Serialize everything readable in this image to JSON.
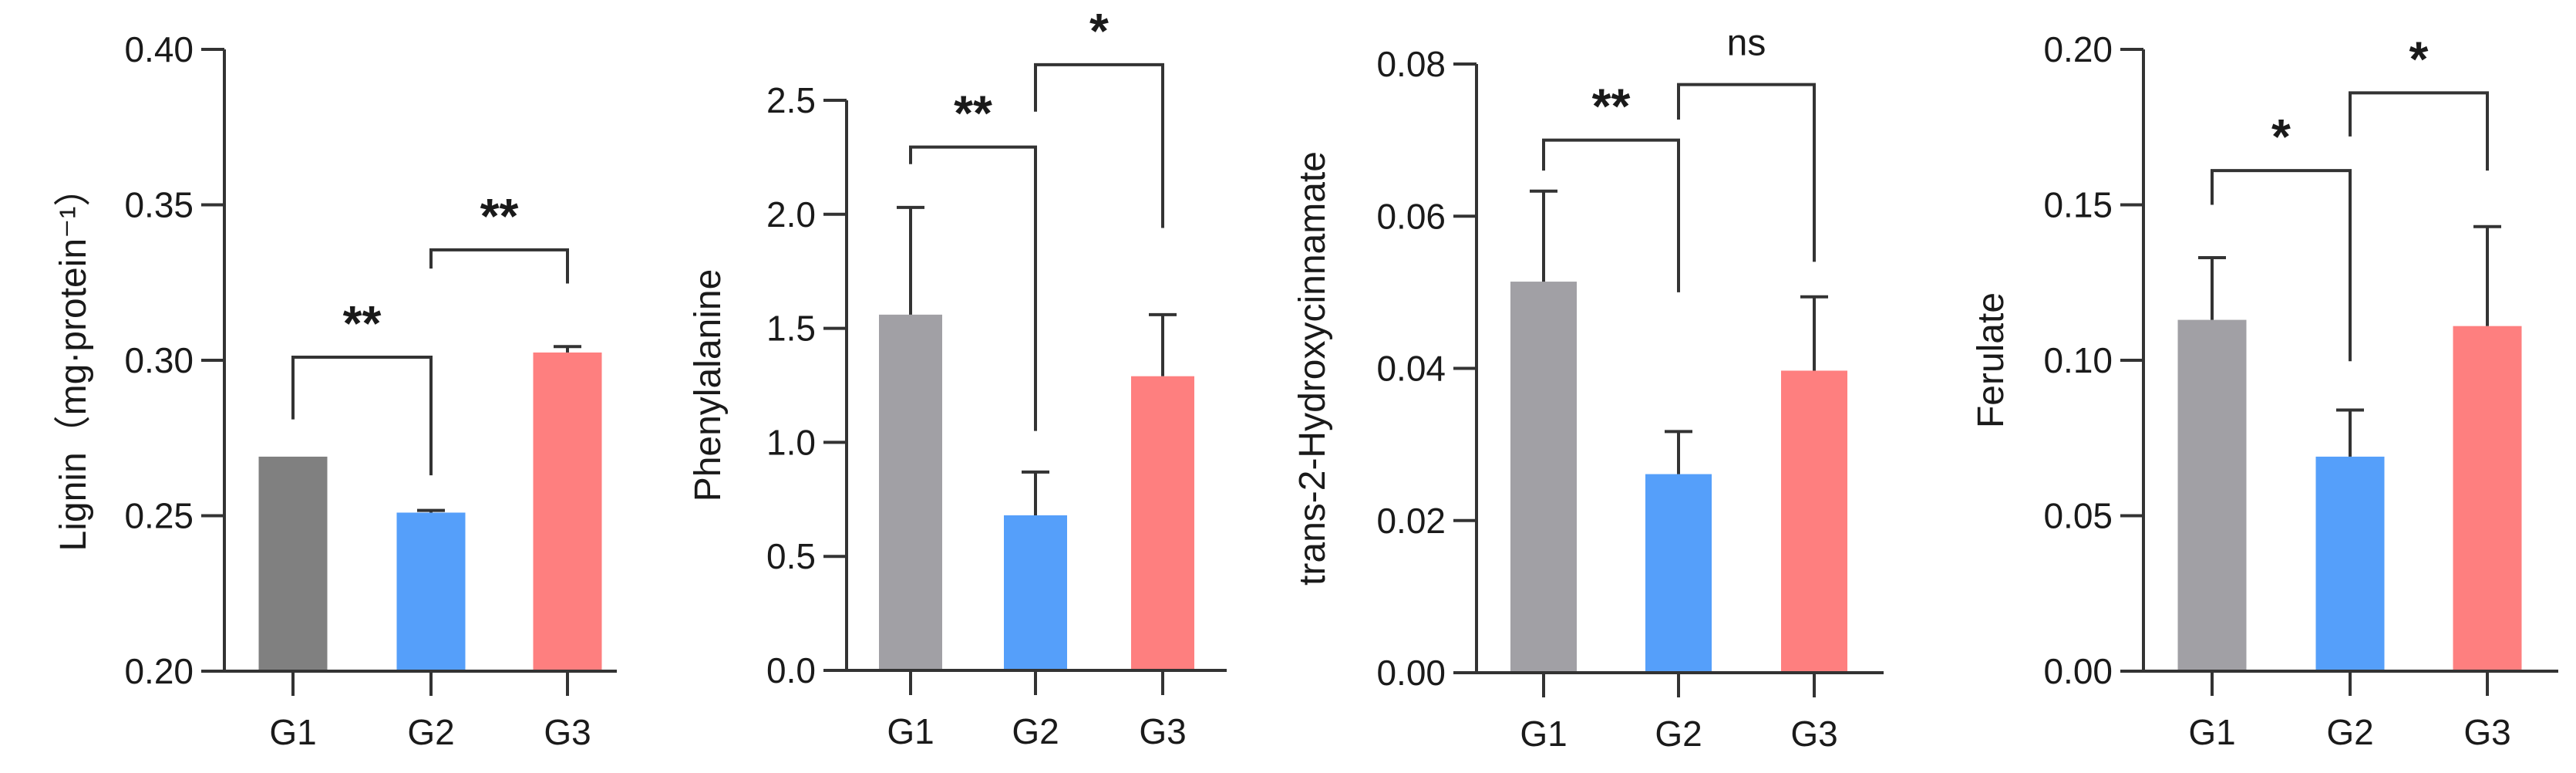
{
  "chart_data": [
    {
      "type": "bar",
      "ylabel": "Lignin（mg·protein⁻¹）",
      "categories": [
        "G1",
        "G2",
        "G3"
      ],
      "values": [
        0.269,
        0.251,
        0.3025
      ],
      "error_upper": [
        0.269,
        0.2517,
        0.3044
      ],
      "ylim": [
        0.2,
        0.4
      ],
      "yticks": [
        0.2,
        0.25,
        0.3,
        0.35,
        0.4
      ],
      "ytick_labels": [
        "0.20",
        "0.25",
        "0.30",
        "0.35",
        "0.40"
      ],
      "colors": [
        "#808080",
        "#559ffa",
        "#fe7f7f"
      ],
      "brackets": [
        {
          "from": 0,
          "to": 1,
          "y": 0.301,
          "left_end": 0.281,
          "right_end": 0.263,
          "label": "**"
        },
        {
          "from": 1,
          "to": 2,
          "y": 0.3355,
          "left_end": 0.3295,
          "right_end": 0.3247,
          "label": "**"
        }
      ]
    },
    {
      "type": "bar",
      "ylabel": "Phenylalanine",
      "categories": [
        "G1",
        "G2",
        "G3"
      ],
      "values": [
        1.56,
        0.68,
        1.29
      ],
      "error_upper": [
        2.03,
        0.87,
        1.56
      ],
      "ylim": [
        0,
        2.5
      ],
      "yticks": [
        0,
        0.5,
        1.0,
        1.5,
        2.0,
        2.5
      ],
      "ytick_labels": [
        "0.0",
        "0.5",
        "1.0",
        "1.5",
        "2.0",
        "2.5"
      ],
      "colors": [
        "#a1a0a5",
        "#559ffa",
        "#fe7f7f"
      ],
      "brackets": [
        {
          "from": 0,
          "to": 1,
          "y": 2.295,
          "left_end": 2.22,
          "right_end": 1.05,
          "label": "**"
        },
        {
          "from": 1,
          "to": 2,
          "y": 2.656,
          "left_end": 2.45,
          "right_end": 1.94,
          "label": "*"
        }
      ]
    },
    {
      "type": "bar",
      "ylabel": "trans-2-Hydroxycinnamate",
      "categories": [
        "G1",
        "G2",
        "G3"
      ],
      "values": [
        0.0514,
        0.0261,
        0.0397
      ],
      "error_upper": [
        0.0633,
        0.0317,
        0.0494
      ],
      "ylim": [
        0,
        0.08
      ],
      "yticks": [
        0,
        0.02,
        0.04,
        0.06,
        0.08
      ],
      "ytick_labels": [
        "0.00",
        "0.02",
        "0.04",
        "0.06",
        "0.08"
      ],
      "colors": [
        "#a1a0a5",
        "#559ffa",
        "#fe7f7f"
      ],
      "brackets": [
        {
          "from": 0,
          "to": 1,
          "y": 0.07,
          "left_end": 0.066,
          "right_end": 0.05,
          "label": "**"
        },
        {
          "from": 1,
          "to": 2,
          "y": 0.0773,
          "left_end": 0.0727,
          "right_end": 0.054,
          "label": "ns"
        }
      ]
    },
    {
      "type": "bar",
      "ylabel": "Ferulate",
      "categories": [
        "G1",
        "G2",
        "G3"
      ],
      "values": [
        0.113,
        0.069,
        0.111
      ],
      "error_upper": [
        0.133,
        0.084,
        0.143
      ],
      "ylim": [
        0,
        0.2
      ],
      "yticks": [
        0,
        0.05,
        0.1,
        0.15,
        0.2
      ],
      "ytick_labels": [
        "0.00",
        "0.05",
        "0.10",
        "0.15",
        "0.20"
      ],
      "colors": [
        "#a1a0a5",
        "#559ffa",
        "#fe7f7f"
      ],
      "brackets": [
        {
          "from": 0,
          "to": 1,
          "y": 0.161,
          "left_end": 0.15,
          "right_end": 0.0997,
          "label": "*"
        },
        {
          "from": 1,
          "to": 2,
          "y": 0.186,
          "left_end": 0.172,
          "right_end": 0.161,
          "label": "*"
        }
      ]
    }
  ]
}
